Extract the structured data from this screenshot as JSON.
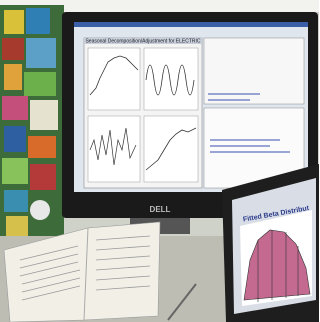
{
  "monitor": {
    "window_title": "Seasonal Decomposition/Adjustment for ELECTRIC",
    "brand": "DELL"
  },
  "laptop": {
    "plot_title": "Fitted Beta Distribut"
  }
}
